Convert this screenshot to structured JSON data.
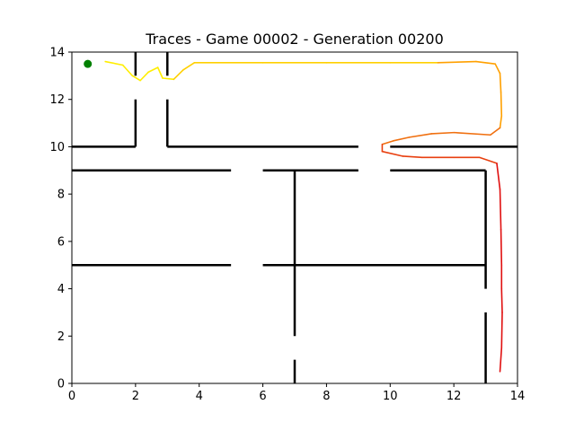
{
  "chart_data": {
    "type": "line",
    "title": "Traces - Game 00002 - Generation 00200",
    "xlabel": "",
    "ylabel": "",
    "xlim": [
      0,
      14
    ],
    "ylim": [
      0,
      14
    ],
    "xticks": [
      "0",
      "2",
      "4",
      "6",
      "8",
      "10",
      "12",
      "14"
    ],
    "yticks": [
      "0",
      "2",
      "4",
      "6",
      "8",
      "10",
      "12",
      "14"
    ],
    "grid": false,
    "walls": [
      [
        [
          0,
          10
        ],
        [
          2,
          10
        ]
      ],
      [
        [
          2,
          10
        ],
        [
          2,
          12
        ]
      ],
      [
        [
          2,
          13
        ],
        [
          2,
          14
        ]
      ],
      [
        [
          3,
          10
        ],
        [
          3,
          12
        ]
      ],
      [
        [
          3,
          13
        ],
        [
          3,
          14
        ]
      ],
      [
        [
          3,
          10
        ],
        [
          9,
          10
        ]
      ],
      [
        [
          10,
          10
        ],
        [
          14,
          10
        ]
      ],
      [
        [
          0,
          9
        ],
        [
          5,
          9
        ]
      ],
      [
        [
          6,
          9
        ],
        [
          9,
          9
        ]
      ],
      [
        [
          10,
          9
        ],
        [
          13,
          9
        ]
      ],
      [
        [
          7,
          9
        ],
        [
          7,
          2
        ]
      ],
      [
        [
          7,
          1
        ],
        [
          7,
          0
        ]
      ],
      [
        [
          0,
          5
        ],
        [
          5,
          5
        ]
      ],
      [
        [
          6,
          5
        ],
        [
          13,
          5
        ]
      ],
      [
        [
          13,
          9
        ],
        [
          13,
          4
        ]
      ],
      [
        [
          13,
          3
        ],
        [
          13,
          0
        ]
      ]
    ],
    "start_point": {
      "x": 0.5,
      "y": 13.5,
      "color": "#008000"
    },
    "trace_colors": [
      "#ffee00",
      "#ffd000",
      "#ffa000",
      "#f07010",
      "#e84010",
      "#e01010"
    ],
    "trace": [
      [
        1.05,
        13.6
      ],
      [
        1.6,
        13.45
      ],
      [
        1.9,
        13.0
      ],
      [
        2.15,
        12.8
      ],
      [
        2.4,
        13.15
      ],
      [
        2.7,
        13.35
      ],
      [
        2.85,
        12.9
      ],
      [
        3.2,
        12.85
      ],
      [
        3.5,
        13.25
      ],
      [
        3.85,
        13.55
      ],
      [
        6.0,
        13.55
      ],
      [
        8.0,
        13.55
      ],
      [
        10.0,
        13.55
      ],
      [
        11.5,
        13.55
      ],
      [
        12.7,
        13.6
      ],
      [
        13.3,
        13.5
      ],
      [
        13.45,
        13.1
      ],
      [
        13.48,
        12.3
      ],
      [
        13.5,
        11.3
      ],
      [
        13.45,
        10.8
      ],
      [
        13.15,
        10.5
      ],
      [
        12.0,
        10.6
      ],
      [
        11.3,
        10.55
      ],
      [
        10.6,
        10.4
      ],
      [
        10.1,
        10.25
      ],
      [
        9.75,
        10.1
      ],
      [
        9.75,
        9.8
      ],
      [
        10.4,
        9.6
      ],
      [
        11.0,
        9.55
      ],
      [
        12.0,
        9.55
      ],
      [
        12.8,
        9.55
      ],
      [
        13.35,
        9.3
      ],
      [
        13.45,
        8.2
      ],
      [
        13.48,
        6.5
      ],
      [
        13.5,
        5.0
      ],
      [
        13.5,
        4.0
      ],
      [
        13.52,
        3.0
      ],
      [
        13.5,
        1.5
      ],
      [
        13.45,
        0.5
      ]
    ]
  }
}
